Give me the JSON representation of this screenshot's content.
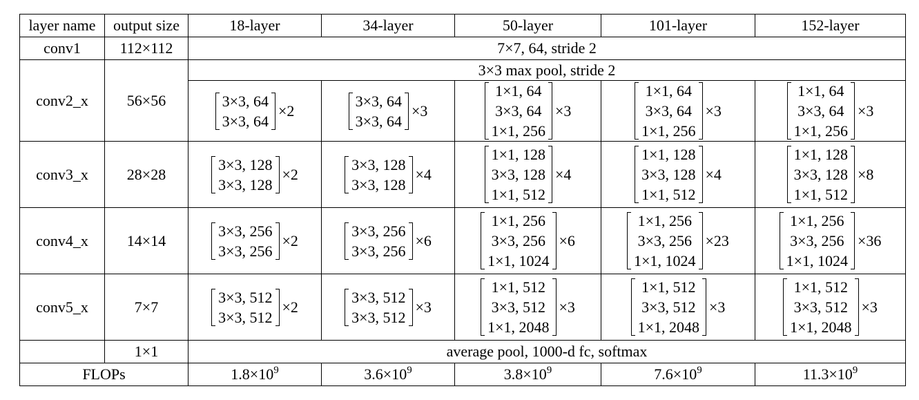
{
  "headers": [
    "layer name",
    "output size",
    "18-layer",
    "34-layer",
    "50-layer",
    "101-layer",
    "152-layer"
  ],
  "conv1": {
    "name": "conv1",
    "size": "112×112",
    "spec": "7×7, 64, stride 2"
  },
  "conv2": {
    "name": "conv2_x",
    "size": "56×56",
    "pool": "3×3 max pool, stride 2",
    "cols": [
      {
        "lines": [
          "3×3, 64",
          "3×3, 64"
        ],
        "mult": "×2"
      },
      {
        "lines": [
          "3×3, 64",
          "3×3, 64"
        ],
        "mult": "×3"
      },
      {
        "lines": [
          "1×1, 64",
          "3×3, 64",
          "1×1, 256"
        ],
        "mult": "×3"
      },
      {
        "lines": [
          "1×1, 64",
          "3×3, 64",
          "1×1, 256"
        ],
        "mult": "×3"
      },
      {
        "lines": [
          "1×1, 64",
          "3×3, 64",
          "1×1, 256"
        ],
        "mult": "×3"
      }
    ]
  },
  "conv3": {
    "name": "conv3_x",
    "size": "28×28",
    "cols": [
      {
        "lines": [
          "3×3, 128",
          "3×3, 128"
        ],
        "mult": "×2"
      },
      {
        "lines": [
          "3×3, 128",
          "3×3, 128"
        ],
        "mult": "×4"
      },
      {
        "lines": [
          "1×1, 128",
          "3×3, 128",
          "1×1, 512"
        ],
        "mult": "×4"
      },
      {
        "lines": [
          "1×1, 128",
          "3×3, 128",
          "1×1, 512"
        ],
        "mult": "×4"
      },
      {
        "lines": [
          "1×1, 128",
          "3×3, 128",
          "1×1, 512"
        ],
        "mult": "×8"
      }
    ]
  },
  "conv4": {
    "name": "conv4_x",
    "size": "14×14",
    "cols": [
      {
        "lines": [
          "3×3, 256",
          "3×3, 256"
        ],
        "mult": "×2"
      },
      {
        "lines": [
          "3×3, 256",
          "3×3, 256"
        ],
        "mult": "×6"
      },
      {
        "lines": [
          "1×1, 256",
          "3×3, 256",
          "1×1, 1024"
        ],
        "mult": "×6"
      },
      {
        "lines": [
          "1×1, 256",
          "3×3, 256",
          "1×1, 1024"
        ],
        "mult": "×23"
      },
      {
        "lines": [
          "1×1, 256",
          "3×3, 256",
          "1×1, 1024"
        ],
        "mult": "×36"
      }
    ]
  },
  "conv5": {
    "name": "conv5_x",
    "size": "7×7",
    "cols": [
      {
        "lines": [
          "3×3, 512",
          "3×3, 512"
        ],
        "mult": "×2"
      },
      {
        "lines": [
          "3×3, 512",
          "3×3, 512"
        ],
        "mult": "×3"
      },
      {
        "lines": [
          "1×1, 512",
          "3×3, 512",
          "1×1, 2048"
        ],
        "mult": "×3"
      },
      {
        "lines": [
          "1×1, 512",
          "3×3, 512",
          "1×1, 2048"
        ],
        "mult": "×3"
      },
      {
        "lines": [
          "1×1, 512",
          "3×3, 512",
          "1×1, 2048"
        ],
        "mult": "×3"
      }
    ]
  },
  "final": {
    "size": "1×1",
    "spec": "average pool, 1000-d fc, softmax"
  },
  "flops": {
    "label": "FLOPs",
    "values": [
      {
        "mantissa": "1.8×10",
        "exp": "9"
      },
      {
        "mantissa": "3.6×10",
        "exp": "9"
      },
      {
        "mantissa": "3.8×10",
        "exp": "9"
      },
      {
        "mantissa": "7.6×10",
        "exp": "9"
      },
      {
        "mantissa": "11.3×10",
        "exp": "9"
      }
    ]
  }
}
